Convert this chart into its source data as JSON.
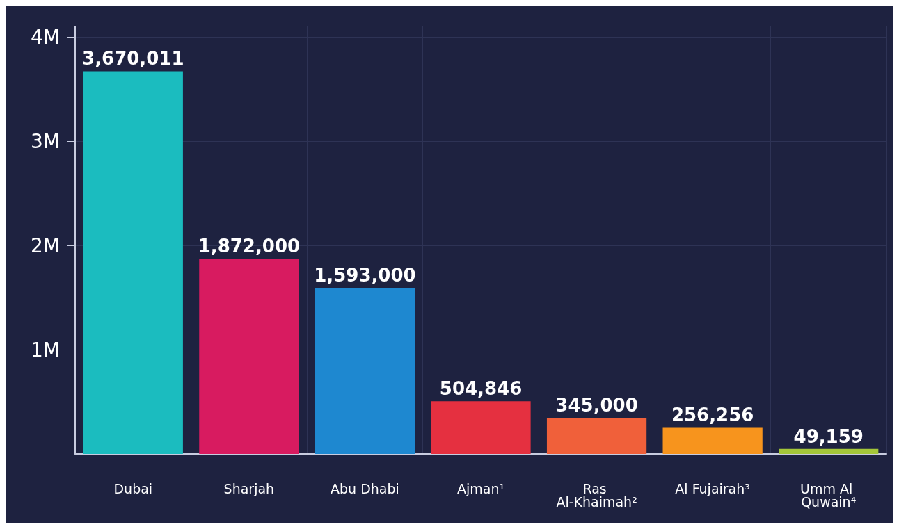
{
  "chart_data": {
    "type": "bar",
    "categories": [
      "Dubai",
      "Sharjah",
      "Abu Dhabi",
      "Ajman¹",
      "Ras Al-Khaimah²",
      "Al Fujairah³",
      "Umm Al Quwain⁴"
    ],
    "values": [
      3670011,
      1872000,
      1593000,
      504846,
      345000,
      256256,
      49159
    ],
    "colors": [
      "#1bbcbf",
      "#d81b60",
      "#1e88d0",
      "#e53040",
      "#f0603a",
      "#f7941d",
      "#a4c639"
    ],
    "ylim": [
      0,
      4100000
    ],
    "yticks": [
      {
        "value": 1000000,
        "label": "1M"
      },
      {
        "value": 2000000,
        "label": "2M"
      },
      {
        "value": 3000000,
        "label": "3M"
      },
      {
        "value": 4000000,
        "label": "4M"
      }
    ],
    "value_labels": [
      "3,670,011",
      "1,872,000",
      "1,593,000",
      "504,846",
      "345,000",
      "256,256",
      "49,159"
    ],
    "grid": true
  }
}
